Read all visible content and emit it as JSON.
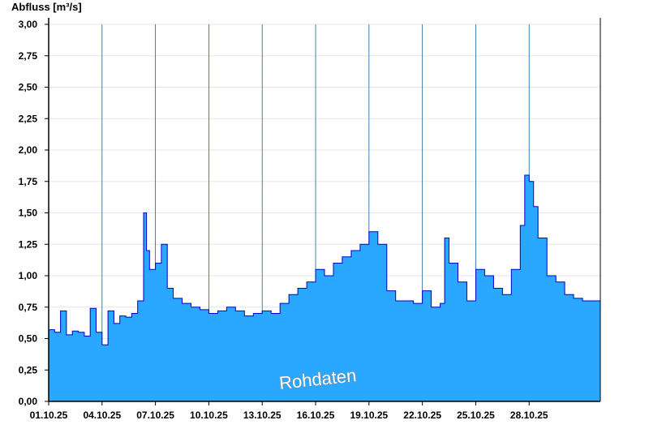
{
  "chart_data": {
    "type": "area",
    "ylabel": "Abfluss [m³/s]",
    "ylim": [
      0,
      3.0
    ],
    "yticks": [
      "0,00",
      "0,25",
      "0,50",
      "0,75",
      "1,00",
      "1,25",
      "1,50",
      "1,75",
      "2,00",
      "2,25",
      "2,50",
      "2,75",
      "3,00"
    ],
    "xlim": [
      "2025-10-01",
      "2025-11-01"
    ],
    "xticks": [
      "01.10.25",
      "04.10.25",
      "07.10.25",
      "10.10.25",
      "13.10.25",
      "16.10.25",
      "19.10.25",
      "22.10.25",
      "25.10.25",
      "28.10.25"
    ],
    "watermark": "Rohdaten",
    "grid": true,
    "colors": {
      "fill": "#2aa8ff",
      "line": "#0000cc",
      "grid": "#e6e6e6"
    },
    "series": [
      {
        "x": [
          "2025-10-01",
          "2025-10-01 08:00",
          "2025-10-01 16:00",
          "2025-10-02",
          "2025-10-02 08:00",
          "2025-10-02 16:00",
          "2025-10-03",
          "2025-10-03 08:00",
          "2025-10-03 16:00",
          "2025-10-04",
          "2025-10-04 08:00",
          "2025-10-04 16:00",
          "2025-10-05",
          "2025-10-05 08:00",
          "2025-10-05 16:00",
          "2025-10-06",
          "2025-10-06 08:00",
          "2025-10-06 12:00",
          "2025-10-06 16:00",
          "2025-10-07",
          "2025-10-07 08:00",
          "2025-10-07 16:00",
          "2025-10-08",
          "2025-10-08 12:00",
          "2025-10-09",
          "2025-10-09 12:00",
          "2025-10-10",
          "2025-10-10 12:00",
          "2025-10-11",
          "2025-10-11 12:00",
          "2025-10-12",
          "2025-10-12 12:00",
          "2025-10-13",
          "2025-10-13 12:00",
          "2025-10-14",
          "2025-10-14 12:00",
          "2025-10-15",
          "2025-10-15 12:00",
          "2025-10-16",
          "2025-10-16 12:00",
          "2025-10-17",
          "2025-10-17 12:00",
          "2025-10-18",
          "2025-10-18 12:00",
          "2025-10-19",
          "2025-10-19 12:00",
          "2025-10-20",
          "2025-10-20 12:00",
          "2025-10-21",
          "2025-10-21 12:00",
          "2025-10-22",
          "2025-10-22 12:00",
          "2025-10-23",
          "2025-10-23 06:00",
          "2025-10-23 12:00",
          "2025-10-24",
          "2025-10-24 12:00",
          "2025-10-25",
          "2025-10-25 12:00",
          "2025-10-26",
          "2025-10-26 12:00",
          "2025-10-27",
          "2025-10-27 12:00",
          "2025-10-27 18:00",
          "2025-10-28",
          "2025-10-28 06:00",
          "2025-10-28 12:00",
          "2025-10-29",
          "2025-10-29 12:00",
          "2025-10-30",
          "2025-10-30 12:00",
          "2025-10-31",
          "2025-11-01"
        ],
        "y": [
          0.57,
          0.55,
          0.72,
          0.53,
          0.56,
          0.55,
          0.52,
          0.74,
          0.55,
          0.45,
          0.72,
          0.62,
          0.68,
          0.67,
          0.7,
          0.8,
          1.5,
          1.2,
          1.05,
          1.1,
          1.25,
          0.9,
          0.82,
          0.78,
          0.75,
          0.73,
          0.7,
          0.72,
          0.75,
          0.72,
          0.68,
          0.7,
          0.72,
          0.7,
          0.78,
          0.85,
          0.9,
          0.95,
          1.05,
          1.0,
          1.1,
          1.15,
          1.2,
          1.25,
          1.35,
          1.25,
          0.88,
          0.8,
          0.8,
          0.78,
          0.88,
          0.75,
          0.78,
          1.3,
          1.1,
          0.95,
          0.8,
          1.05,
          1.0,
          0.9,
          0.85,
          1.05,
          1.4,
          1.8,
          1.75,
          1.55,
          1.3,
          1.0,
          0.95,
          0.85,
          0.82,
          0.8,
          0.8
        ]
      }
    ]
  }
}
